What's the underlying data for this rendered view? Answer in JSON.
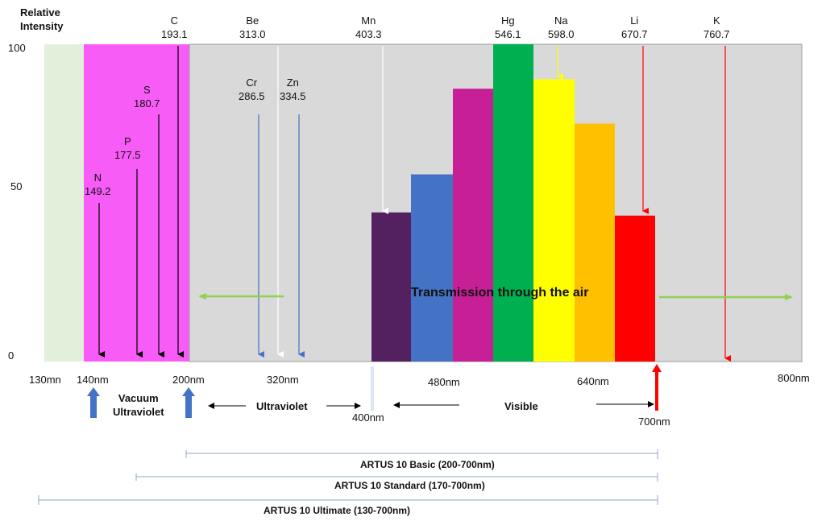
{
  "y_axis": {
    "title_line1": "Relative",
    "title_line2": "Intensity",
    "ticks": [
      "100",
      "50",
      "0"
    ]
  },
  "elements": [
    {
      "symbol": "N",
      "wavelength": "149.2",
      "color": "#000000"
    },
    {
      "symbol": "P",
      "wavelength": "177.5",
      "color": "#000000"
    },
    {
      "symbol": "S",
      "wavelength": "180.7",
      "color": "#000000"
    },
    {
      "symbol": "C",
      "wavelength": "193.1",
      "color": "#000000"
    },
    {
      "symbol": "Cr",
      "wavelength": "286.5",
      "color": "#4472c4"
    },
    {
      "symbol": "Be",
      "wavelength": "313.0",
      "color": "#ffffff"
    },
    {
      "symbol": "Zn",
      "wavelength": "334.5",
      "color": "#4472c4"
    },
    {
      "symbol": "Mn",
      "wavelength": "403.3",
      "color": "#ffffff"
    },
    {
      "symbol": "Hg",
      "wavelength": "546.1",
      "color": "#00b050"
    },
    {
      "symbol": "Na",
      "wavelength": "598.0",
      "color": "#ffff00"
    },
    {
      "symbol": "Li",
      "wavelength": "670.7",
      "color": "#ff0000"
    },
    {
      "symbol": "K",
      "wavelength": "760.7",
      "color": "#ff0000"
    }
  ],
  "bars": [
    {
      "color": "#542160",
      "intensity": 47
    },
    {
      "color": "#4472c4",
      "intensity": 59
    },
    {
      "color": "#c71f96",
      "intensity": 86
    },
    {
      "color": "#00b050",
      "intensity": 100
    },
    {
      "color": "#ffff00",
      "intensity": 89
    },
    {
      "color": "#ffc000",
      "intensity": 75
    },
    {
      "color": "#ff0000",
      "intensity": 46
    }
  ],
  "regions": {
    "green": "#e2efda",
    "magenta": "#f75cf7",
    "grey": "#d9d9d9"
  },
  "transmission_label": "Transmission through the air",
  "x_labels": [
    "130mn",
    "140nm",
    "200nm",
    "320nm",
    "400nm",
    "480nm",
    "640nm",
    "700nm",
    "800nm"
  ],
  "bands": {
    "vacuum_line1": "Vacuum",
    "vacuum_line2": "Ultraviolet",
    "ultraviolet": "Ultraviolet",
    "visible": "Visible"
  },
  "products": [
    "ARTUS 10 Basic (200-700nm)",
    "ARTUS 10 Standard (170-700nm)",
    "ARTUS 10 Ultimate (130-700nm)"
  ]
}
